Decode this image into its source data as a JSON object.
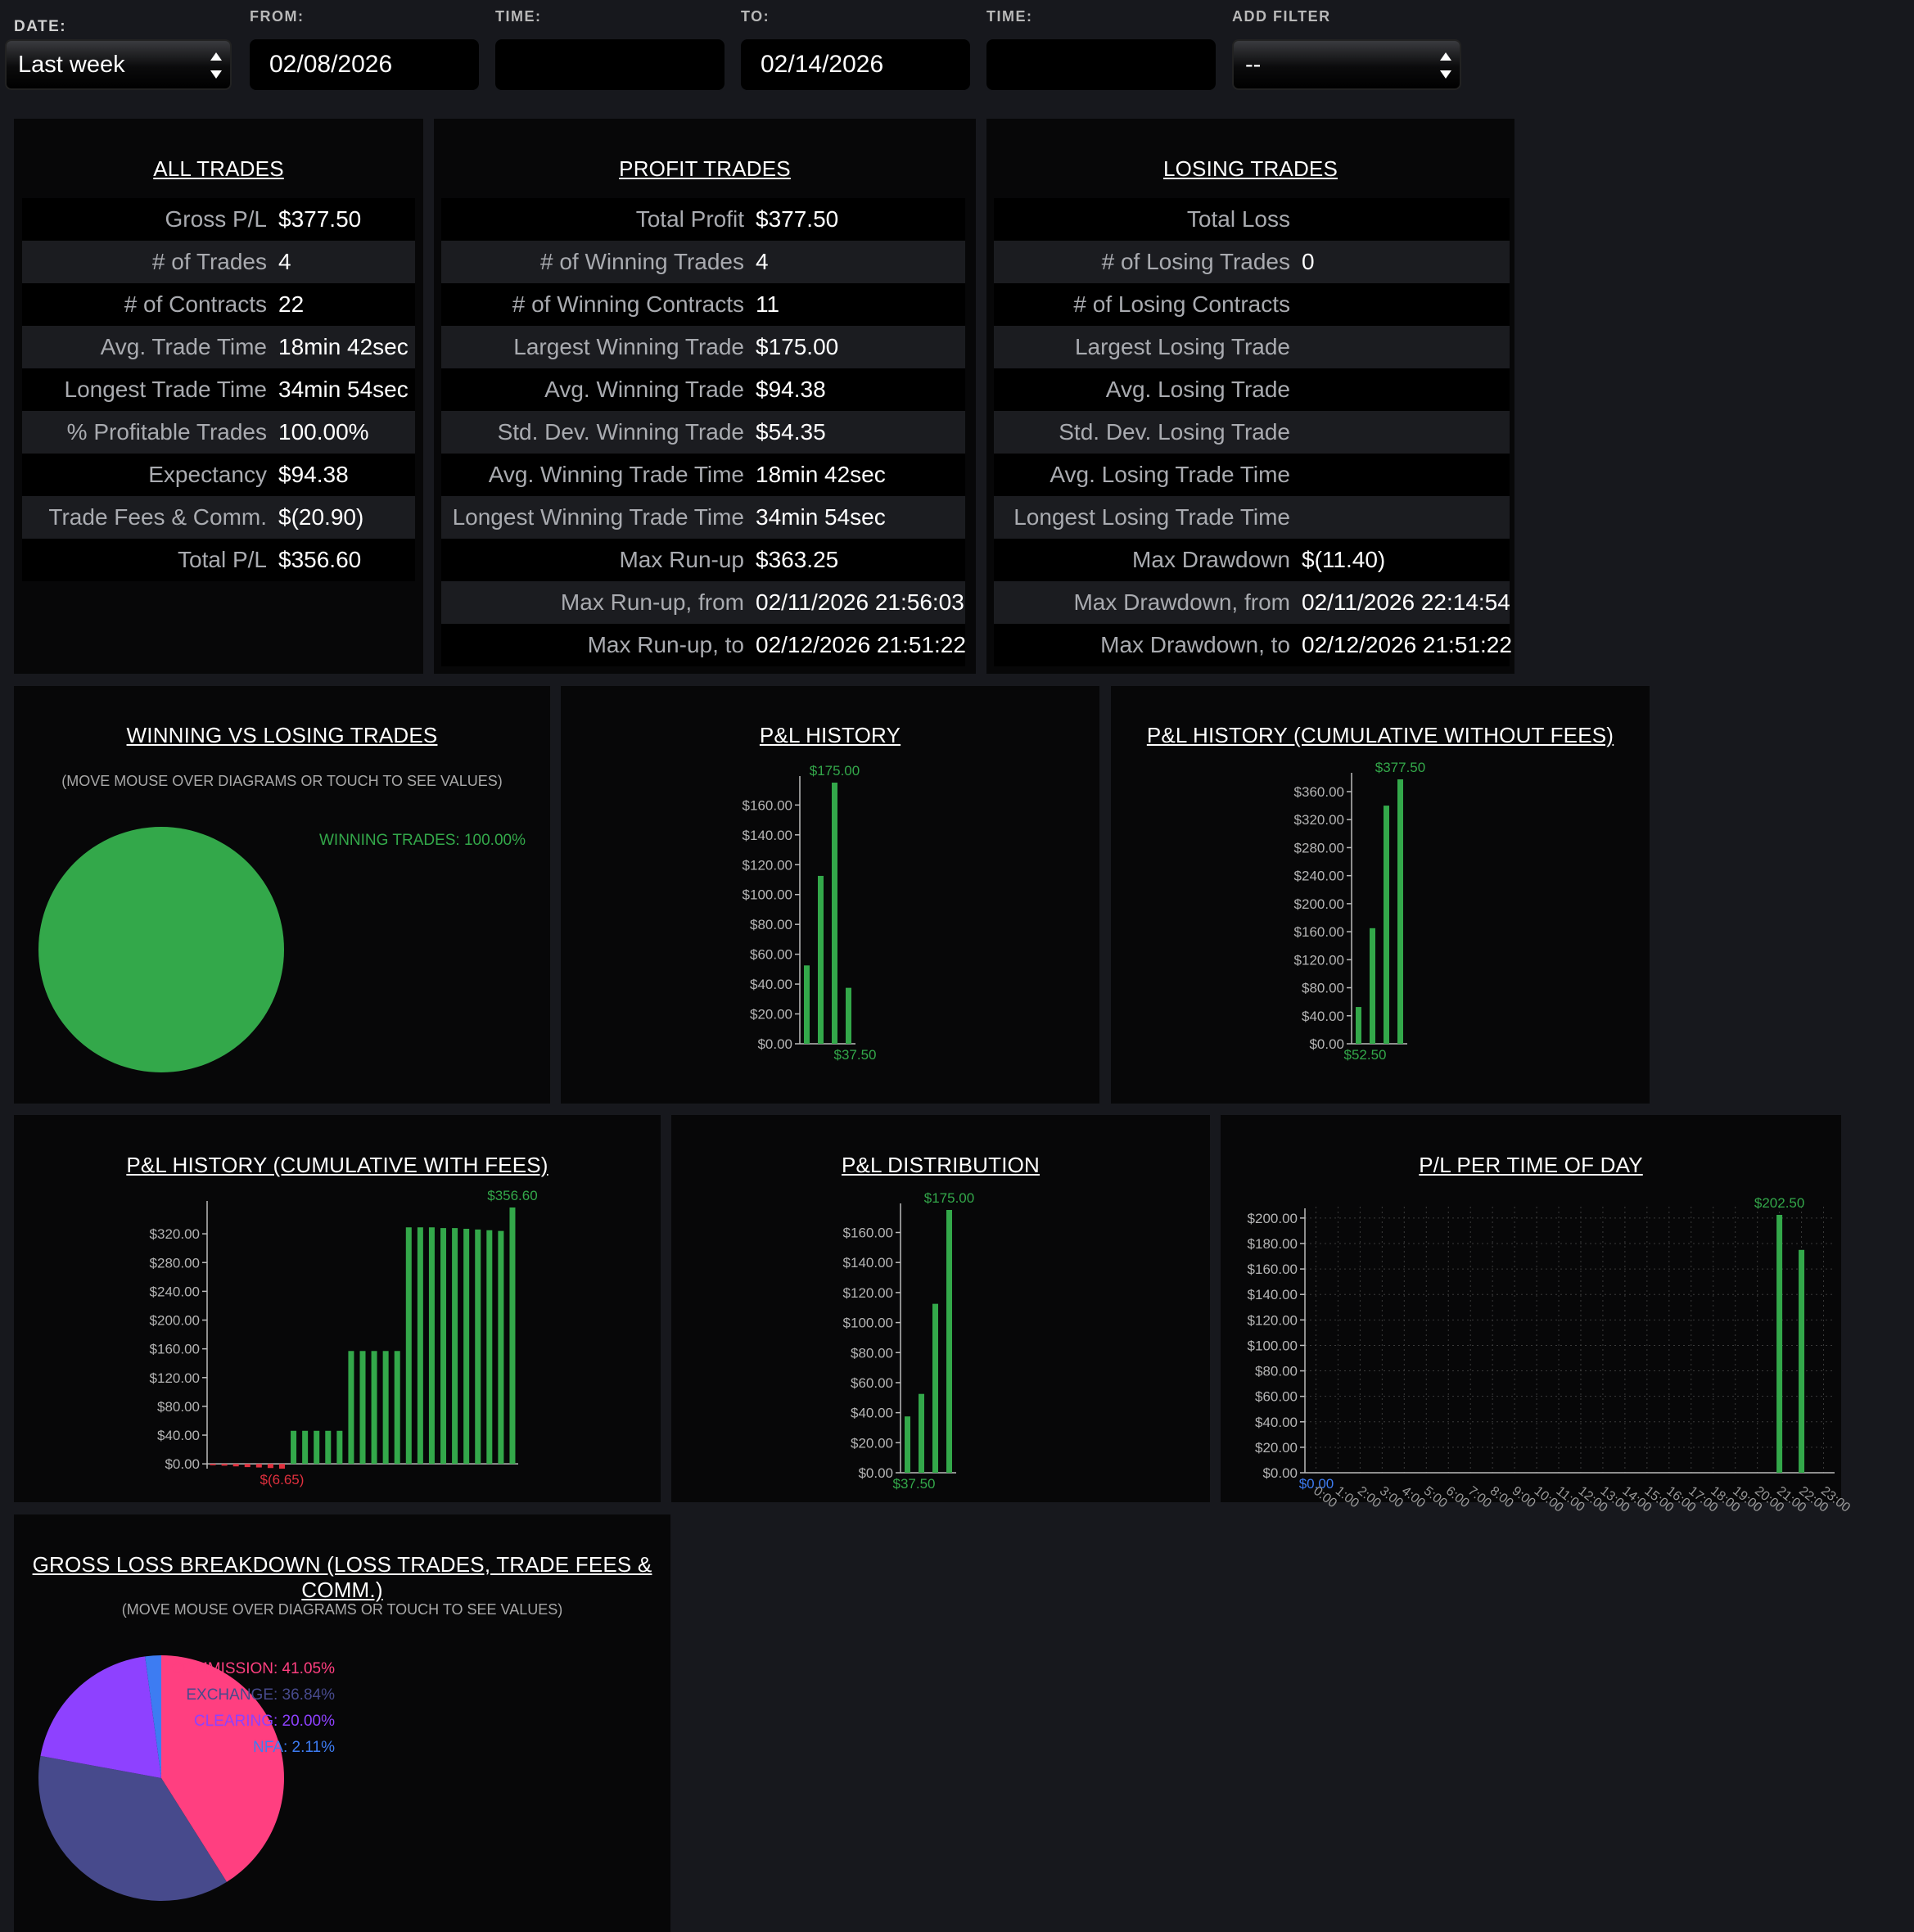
{
  "filters": {
    "date_label": "DATE:",
    "date_value": "Last week",
    "from_label": "FROM:",
    "from_value": "02/08/2026",
    "time1_label": "TIME:",
    "time1_value": "",
    "to_label": "TO:",
    "to_value": "02/14/2026",
    "time2_label": "TIME:",
    "time2_value": "",
    "add_filter_label": "ADD FILTER",
    "add_filter_value": "--"
  },
  "all_trades": {
    "title": "ALL TRADES",
    "rows": [
      {
        "label": "Gross P/L",
        "value": "$377.50"
      },
      {
        "label": "# of Trades",
        "value": "4"
      },
      {
        "label": "# of Contracts",
        "value": "22"
      },
      {
        "label": "Avg. Trade Time",
        "value": "18min 42sec"
      },
      {
        "label": "Longest Trade Time",
        "value": "34min 54sec"
      },
      {
        "label": "% Profitable Trades",
        "value": "100.00%"
      },
      {
        "label": "Expectancy",
        "value": "$94.38"
      },
      {
        "label": "Trade Fees & Comm.",
        "value": "$(20.90)"
      },
      {
        "label": "Total P/L",
        "value": "$356.60"
      }
    ]
  },
  "profit_trades": {
    "title": "PROFIT TRADES",
    "rows": [
      {
        "label": "Total Profit",
        "value": "$377.50"
      },
      {
        "label": "# of Winning Trades",
        "value": "4"
      },
      {
        "label": "# of Winning Contracts",
        "value": "11"
      },
      {
        "label": "Largest Winning Trade",
        "value": "$175.00"
      },
      {
        "label": "Avg. Winning Trade",
        "value": "$94.38"
      },
      {
        "label": "Std. Dev. Winning Trade",
        "value": "$54.35"
      },
      {
        "label": "Avg. Winning Trade Time",
        "value": "18min 42sec"
      },
      {
        "label": "Longest Winning Trade Time",
        "value": "34min 54sec"
      },
      {
        "label": "Max Run-up",
        "value": "$363.25"
      },
      {
        "label": "Max Run-up, from",
        "value": "02/11/2026 21:56:03"
      },
      {
        "label": "Max Run-up, to",
        "value": "02/12/2026 21:51:22"
      }
    ]
  },
  "losing_trades": {
    "title": "LOSING TRADES",
    "rows": [
      {
        "label": "Total Loss",
        "value": ""
      },
      {
        "label": "# of Losing Trades",
        "value": "0"
      },
      {
        "label": "# of Losing Contracts",
        "value": ""
      },
      {
        "label": "Largest Losing Trade",
        "value": ""
      },
      {
        "label": "Avg. Losing Trade",
        "value": ""
      },
      {
        "label": "Std. Dev. Losing Trade",
        "value": ""
      },
      {
        "label": "Avg. Losing Trade Time",
        "value": ""
      },
      {
        "label": "Longest Losing Trade Time",
        "value": ""
      },
      {
        "label": "Max Drawdown",
        "value": "$(11.40)"
      },
      {
        "label": "Max Drawdown, from",
        "value": "02/11/2026 22:14:54"
      },
      {
        "label": "Max Drawdown, to",
        "value": "02/12/2026 21:51:22"
      }
    ]
  },
  "colors": {
    "green": "#33a84a",
    "red": "#e0303e",
    "commission": "#ff3f80",
    "exchange": "#474a8c",
    "clearing": "#8e41ff",
    "nfa": "#3d7cf2"
  },
  "chart_data": [
    {
      "id": "winning_vs_losing",
      "type": "pie",
      "title": "WINNING VS LOSING TRADES",
      "note": "(MOVE MOUSE OVER DIAGRAMS OR TOUCH TO SEE VALUES)",
      "slices": [
        {
          "label": "WINNING TRADES: 100.00%",
          "value": 100.0,
          "color": "#33a84a"
        }
      ]
    },
    {
      "id": "pl_history",
      "type": "bar",
      "title": "P&L HISTORY",
      "values": [
        52.5,
        112.5,
        175.0,
        37.5
      ],
      "ylim": [
        0,
        175
      ],
      "yticks": [
        0,
        20,
        40,
        60,
        80,
        100,
        120,
        140,
        160
      ],
      "ytick_labels": [
        "$0.00",
        "$20.00",
        "$40.00",
        "$60.00",
        "$80.00",
        "$100.00",
        "$120.00",
        "$140.00",
        "$160.00"
      ],
      "max_label": "$175.00",
      "min_label": "$37.50",
      "min_index": 3
    },
    {
      "id": "pl_cum_no_fees",
      "type": "bar",
      "title": "P&L HISTORY (CUMULATIVE WITHOUT FEES)",
      "values": [
        52.5,
        165.0,
        340.0,
        377.5
      ],
      "ylim": [
        0,
        377.5
      ],
      "yticks": [
        0,
        40,
        80,
        120,
        160,
        200,
        240,
        280,
        320,
        360
      ],
      "ytick_labels": [
        "$0.00",
        "$40.00",
        "$80.00",
        "$120.00",
        "$160.00",
        "$200.00",
        "$240.00",
        "$280.00",
        "$320.00",
        "$360.00"
      ],
      "max_label": "$377.50",
      "min_label": "$52.50",
      "min_index": 0
    },
    {
      "id": "pl_cum_fees",
      "type": "bar",
      "title": "P&L HISTORY (CUMULATIVE WITH FEES)",
      "values": [
        -1.9,
        -2.5,
        -3.5,
        -4.5,
        -5.0,
        -5.8,
        -6.65,
        46.0,
        46.0,
        46.0,
        46.0,
        46.0,
        157.0,
        157.0,
        157.0,
        157.0,
        157.0,
        329.0,
        329.0,
        329.0,
        328.0,
        328.0,
        327.0,
        326.0,
        325.0,
        324.0,
        356.6
      ],
      "ylim": [
        -6.65,
        356.6
      ],
      "yticks": [
        0,
        40,
        80,
        120,
        160,
        200,
        240,
        280,
        320
      ],
      "ytick_labels": [
        "$0.00",
        "$40.00",
        "$80.00",
        "$120.00",
        "$160.00",
        "$200.00",
        "$240.00",
        "$280.00",
        "$320.00"
      ],
      "max_label": "$356.60",
      "min_label": "$(6.65)",
      "min_index": 6
    },
    {
      "id": "pl_distribution",
      "type": "bar",
      "title": "P&L DISTRIBUTION",
      "values": [
        37.5,
        52.5,
        112.5,
        175.0
      ],
      "ylim": [
        0,
        175
      ],
      "yticks": [
        0,
        20,
        40,
        60,
        80,
        100,
        120,
        140,
        160
      ],
      "ytick_labels": [
        "$0.00",
        "$20.00",
        "$40.00",
        "$60.00",
        "$80.00",
        "$100.00",
        "$120.00",
        "$140.00",
        "$160.00"
      ],
      "max_label": "$175.00",
      "min_label": "$37.50",
      "min_index": 0
    },
    {
      "id": "pl_time_of_day",
      "type": "bar",
      "title": "P/L PER TIME OF DAY",
      "categories": [
        "0:00",
        "1:00",
        "2:00",
        "3:00",
        "4:00",
        "5:00",
        "6:00",
        "7:00",
        "8:00",
        "9:00",
        "10:00",
        "11:00",
        "12:00",
        "13:00",
        "14:00",
        "15:00",
        "16:00",
        "17:00",
        "18:00",
        "19:00",
        "20:00",
        "21:00",
        "22:00",
        "23:00"
      ],
      "values": [
        0,
        0,
        0,
        0,
        0,
        0,
        0,
        0,
        0,
        0,
        0,
        0,
        0,
        0,
        0,
        0,
        0,
        0,
        0,
        0,
        0,
        202.5,
        175.0,
        0
      ],
      "ylim": [
        0,
        202.5
      ],
      "yticks": [
        0,
        20,
        40,
        60,
        80,
        100,
        120,
        140,
        160,
        180,
        200
      ],
      "ytick_labels": [
        "$0.00",
        "$20.00",
        "$40.00",
        "$60.00",
        "$80.00",
        "$100.00",
        "$120.00",
        "$140.00",
        "$160.00",
        "$180.00",
        "$200.00"
      ],
      "max_label": "$202.50",
      "min_label": "$0.00",
      "grid": true
    },
    {
      "id": "gross_loss_breakdown",
      "type": "pie",
      "title": "GROSS LOSS BREAKDOWN (LOSS TRADES, TRADE FEES & COMM.)",
      "note": "(MOVE MOUSE OVER DIAGRAMS OR TOUCH TO SEE VALUES)",
      "slices": [
        {
          "label": "COMMISSION: 41.05%",
          "value": 41.05,
          "color": "#ff3f80"
        },
        {
          "label": "EXCHANGE: 36.84%",
          "value": 36.84,
          "color": "#474a8c"
        },
        {
          "label": "CLEARING: 20.00%",
          "value": 20.0,
          "color": "#8e41ff"
        },
        {
          "label": "NFA: 2.11%",
          "value": 2.11,
          "color": "#3d7cf2"
        }
      ]
    }
  ]
}
